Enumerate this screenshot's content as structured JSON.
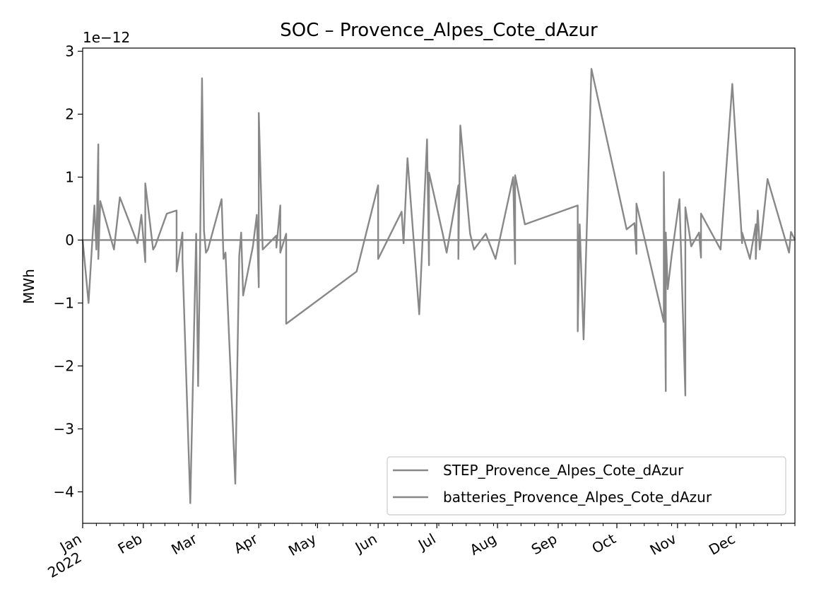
{
  "chart_data": {
    "type": "line",
    "title": "SOC – Provence_Alpes_Cote_dAzur",
    "ylabel": "MWh",
    "xlabel": "",
    "y_offset_label": "1e−12",
    "y_scale": 1e-12,
    "ylim": [
      -4.5,
      3.05
    ],
    "xlim": [
      "2022-01-01",
      "2022-12-31"
    ],
    "grid": false,
    "legend_position": "lower-right",
    "y_ticks": [
      {
        "value": 3,
        "label": "3"
      },
      {
        "value": 2,
        "label": "2"
      },
      {
        "value": 1,
        "label": "1"
      },
      {
        "value": 0,
        "label": "0"
      },
      {
        "value": -1,
        "label": "−1"
      },
      {
        "value": -2,
        "label": "−2"
      },
      {
        "value": -3,
        "label": "−3"
      },
      {
        "value": -4,
        "label": "−4"
      }
    ],
    "x_ticks": [
      {
        "date": "2022-01-01",
        "label": "Jan",
        "label2": "2022"
      },
      {
        "date": "2022-02-01",
        "label": "Feb"
      },
      {
        "date": "2022-03-01",
        "label": "Mar"
      },
      {
        "date": "2022-04-01",
        "label": "Apr"
      },
      {
        "date": "2022-05-01",
        "label": "May"
      },
      {
        "date": "2022-06-01",
        "label": "Jun"
      },
      {
        "date": "2022-07-01",
        "label": "Jul"
      },
      {
        "date": "2022-08-01",
        "label": "Aug"
      },
      {
        "date": "2022-09-01",
        "label": "Sep"
      },
      {
        "date": "2022-10-01",
        "label": "Oct"
      },
      {
        "date": "2022-11-01",
        "label": "Nov"
      },
      {
        "date": "2022-12-01",
        "label": "Dec"
      }
    ],
    "series": [
      {
        "name": "STEP_Provence_Alpes_Cote_dAzur",
        "color": "#888888",
        "points": [
          [
            "2022-01-01",
            0
          ],
          [
            "2022-12-31",
            0
          ]
        ]
      },
      {
        "name": "batteries_Provence_Alpes_Cote_dAzur",
        "color": "#888888",
        "points": [
          [
            "2022-01-01",
            0
          ],
          [
            "2022-01-04",
            -1.0
          ],
          [
            "2022-01-07",
            0.55
          ],
          [
            "2022-01-08",
            -0.15
          ],
          [
            "2022-01-09",
            1.52
          ],
          [
            "2022-01-09",
            -0.3
          ],
          [
            "2022-01-10",
            0.62
          ],
          [
            "2022-01-17",
            -0.15
          ],
          [
            "2022-01-20",
            0.68
          ],
          [
            "2022-01-29",
            -0.05
          ],
          [
            "2022-01-31",
            0.4
          ],
          [
            "2022-02-02",
            -0.35
          ],
          [
            "2022-02-02",
            0.9
          ],
          [
            "2022-02-06",
            -0.15
          ],
          [
            "2022-02-07",
            -0.1
          ],
          [
            "2022-02-13",
            0.42
          ],
          [
            "2022-02-18",
            0.47
          ],
          [
            "2022-02-18",
            -0.5
          ],
          [
            "2022-02-20",
            -0.1
          ],
          [
            "2022-02-21",
            0.12
          ],
          [
            "2022-02-21",
            -0.3
          ],
          [
            "2022-02-25",
            -4.18
          ],
          [
            "2022-02-28",
            0.1
          ],
          [
            "2022-03-01",
            -2.32
          ],
          [
            "2022-03-02",
            -0.15
          ],
          [
            "2022-03-03",
            2.57
          ],
          [
            "2022-03-04",
            0.15
          ],
          [
            "2022-03-05",
            -0.2
          ],
          [
            "2022-03-06",
            -0.15
          ],
          [
            "2022-03-13",
            0.65
          ],
          [
            "2022-03-14",
            -0.3
          ],
          [
            "2022-03-15",
            -0.2
          ],
          [
            "2022-03-20",
            -3.87
          ],
          [
            "2022-03-22",
            -0.25
          ],
          [
            "2022-03-23",
            0.12
          ],
          [
            "2022-03-24",
            -0.88
          ],
          [
            "2022-03-29",
            -0.1
          ],
          [
            "2022-03-31",
            0.4
          ],
          [
            "2022-04-01",
            -0.75
          ],
          [
            "2022-04-01",
            2.02
          ],
          [
            "2022-04-03",
            -0.15
          ],
          [
            "2022-04-10",
            0.07
          ],
          [
            "2022-04-10",
            -0.12
          ],
          [
            "2022-04-12",
            0.55
          ],
          [
            "2022-04-12",
            -0.2
          ],
          [
            "2022-04-15",
            0.1
          ],
          [
            "2022-04-15",
            -1.33
          ],
          [
            "2022-05-21",
            -0.5
          ],
          [
            "2022-06-01",
            0.87
          ],
          [
            "2022-06-01",
            -0.3
          ],
          [
            "2022-06-13",
            0.45
          ],
          [
            "2022-06-14",
            -0.05
          ],
          [
            "2022-06-16",
            1.3
          ],
          [
            "2022-06-22",
            -1.18
          ],
          [
            "2022-06-26",
            1.6
          ],
          [
            "2022-06-27",
            -0.4
          ],
          [
            "2022-06-27",
            1.07
          ],
          [
            "2022-07-04",
            0.1
          ],
          [
            "2022-07-06",
            -0.2
          ],
          [
            "2022-07-12",
            0.87
          ],
          [
            "2022-07-12",
            -0.3
          ],
          [
            "2022-07-13",
            1.82
          ],
          [
            "2022-07-18",
            0.1
          ],
          [
            "2022-07-20",
            -0.15
          ],
          [
            "2022-07-26",
            0.1
          ],
          [
            "2022-07-31",
            -0.3
          ],
          [
            "2022-08-09",
            1.0
          ],
          [
            "2022-08-10",
            -0.38
          ],
          [
            "2022-08-10",
            1.03
          ],
          [
            "2022-08-15",
            0.25
          ],
          [
            "2022-09-11",
            0.55
          ],
          [
            "2022-09-11",
            -1.45
          ],
          [
            "2022-09-12",
            0.25
          ],
          [
            "2022-09-14",
            -1.58
          ],
          [
            "2022-09-18",
            2.72
          ],
          [
            "2022-10-06",
            0.17
          ],
          [
            "2022-10-10",
            0.27
          ],
          [
            "2022-10-11",
            -0.22
          ],
          [
            "2022-10-11",
            0.58
          ],
          [
            "2022-10-25",
            -1.3
          ],
          [
            "2022-10-25",
            1.08
          ],
          [
            "2022-10-26",
            -2.4
          ],
          [
            "2022-10-26",
            0.12
          ],
          [
            "2022-10-27",
            -0.78
          ],
          [
            "2022-10-29",
            -0.25
          ],
          [
            "2022-11-02",
            0.65
          ],
          [
            "2022-11-05",
            -2.47
          ],
          [
            "2022-11-05",
            0.52
          ],
          [
            "2022-11-07",
            0.12
          ],
          [
            "2022-11-08",
            -0.1
          ],
          [
            "2022-11-12",
            0.12
          ],
          [
            "2022-11-13",
            -0.28
          ],
          [
            "2022-11-13",
            0.42
          ],
          [
            "2022-11-23",
            -0.15
          ],
          [
            "2022-11-29",
            2.48
          ],
          [
            "2022-12-04",
            -0.05
          ],
          [
            "2022-12-04",
            0.12
          ],
          [
            "2022-12-08",
            -0.3
          ],
          [
            "2022-12-11",
            0.25
          ],
          [
            "2022-12-11",
            -0.3
          ],
          [
            "2022-12-12",
            0.47
          ],
          [
            "2022-12-13",
            -0.15
          ],
          [
            "2022-12-14",
            0.1
          ],
          [
            "2022-12-17",
            0.97
          ],
          [
            "2022-12-28",
            -0.2
          ],
          [
            "2022-12-29",
            0.13
          ],
          [
            "2022-12-31",
            0
          ]
        ]
      }
    ]
  }
}
